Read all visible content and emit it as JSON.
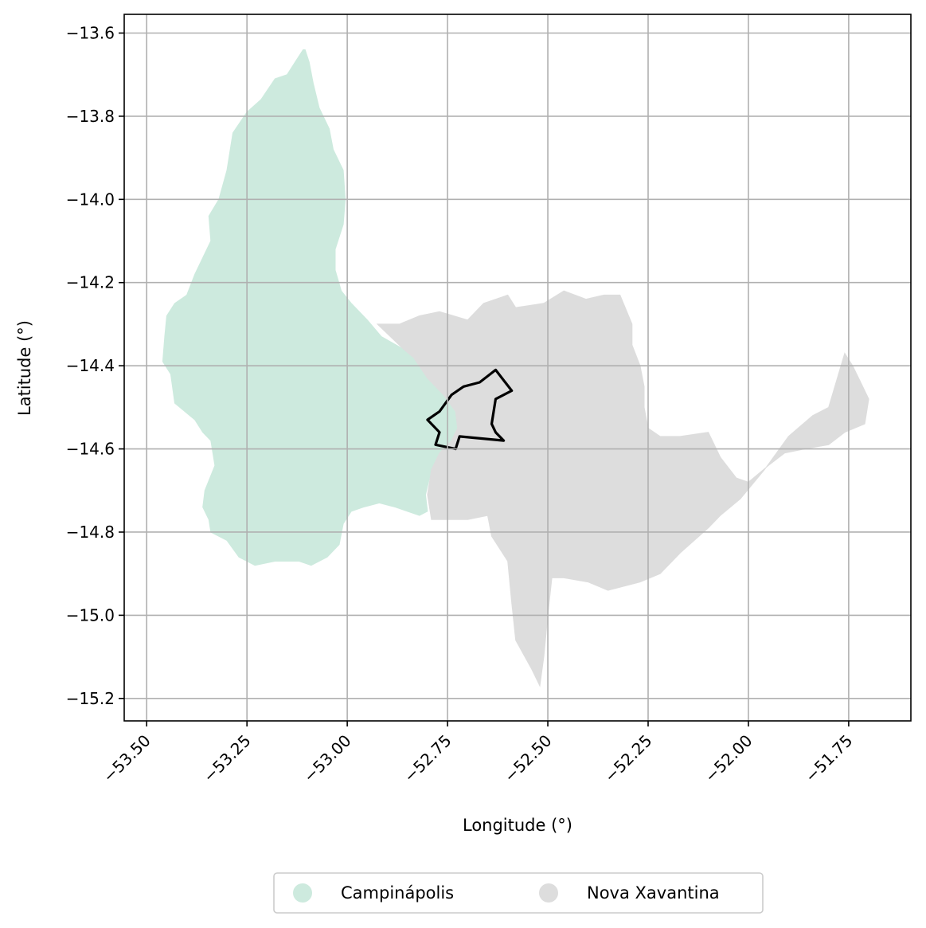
{
  "chart_data": {
    "type": "map",
    "xlabel": "Longitude (°)",
    "ylabel": "Latitude (°)",
    "xlim": [
      -53.556,
      -51.595
    ],
    "ylim": [
      -15.254,
      -13.555
    ],
    "grid": true,
    "x_ticks": [
      {
        "value": -53.5,
        "label": "−53.50"
      },
      {
        "value": -53.25,
        "label": "−53.25"
      },
      {
        "value": -53.0,
        "label": "−53.00"
      },
      {
        "value": -52.75,
        "label": "−52.75"
      },
      {
        "value": -52.5,
        "label": "−52.50"
      },
      {
        "value": -52.25,
        "label": "−52.25"
      },
      {
        "value": -52.0,
        "label": "−52.00"
      },
      {
        "value": -51.75,
        "label": "−51.75"
      }
    ],
    "y_ticks": [
      {
        "value": -13.6,
        "label": "−13.6"
      },
      {
        "value": -13.8,
        "label": "−13.8"
      },
      {
        "value": -14.0,
        "label": "−14.0"
      },
      {
        "value": -14.2,
        "label": "−14.2"
      },
      {
        "value": -14.4,
        "label": "−14.4"
      },
      {
        "value": -14.6,
        "label": "−14.6"
      },
      {
        "value": -14.8,
        "label": "−14.8"
      },
      {
        "value": -15.0,
        "label": "−15.0"
      },
      {
        "value": -15.2,
        "label": "−15.2"
      }
    ],
    "legend_placement": "bottom-center",
    "regions": [
      {
        "name": "Campinápolis",
        "color": "#cdeade",
        "polygon": [
          [
            -53.11,
            -13.64
          ],
          [
            -53.105,
            -13.64
          ],
          [
            -53.095,
            -13.67
          ],
          [
            -53.085,
            -13.72
          ],
          [
            -53.07,
            -13.78
          ],
          [
            -53.045,
            -13.83
          ],
          [
            -53.035,
            -13.88
          ],
          [
            -53.01,
            -13.93
          ],
          [
            -53.005,
            -14.0
          ],
          [
            -53.01,
            -14.06
          ],
          [
            -53.03,
            -14.12
          ],
          [
            -53.03,
            -14.17
          ],
          [
            -53.015,
            -14.22
          ],
          [
            -52.99,
            -14.25
          ],
          [
            -52.95,
            -14.29
          ],
          [
            -52.915,
            -14.33
          ],
          [
            -52.86,
            -14.36
          ],
          [
            -52.835,
            -14.38
          ],
          [
            -52.8,
            -14.43
          ],
          [
            -52.76,
            -14.47
          ],
          [
            -52.73,
            -14.51
          ],
          [
            -52.725,
            -14.55
          ],
          [
            -52.74,
            -14.58
          ],
          [
            -52.77,
            -14.61
          ],
          [
            -52.79,
            -14.65
          ],
          [
            -52.805,
            -14.71
          ],
          [
            -52.8,
            -14.75
          ],
          [
            -52.82,
            -14.76
          ],
          [
            -52.85,
            -14.75
          ],
          [
            -52.88,
            -14.74
          ],
          [
            -52.92,
            -14.73
          ],
          [
            -52.96,
            -14.74
          ],
          [
            -52.99,
            -14.75
          ],
          [
            -53.01,
            -14.78
          ],
          [
            -53.02,
            -14.83
          ],
          [
            -53.05,
            -14.86
          ],
          [
            -53.09,
            -14.88
          ],
          [
            -53.12,
            -14.87
          ],
          [
            -53.18,
            -14.87
          ],
          [
            -53.23,
            -14.88
          ],
          [
            -53.27,
            -14.86
          ],
          [
            -53.3,
            -14.82
          ],
          [
            -53.34,
            -14.8
          ],
          [
            -53.345,
            -14.77
          ],
          [
            -53.36,
            -14.74
          ],
          [
            -53.355,
            -14.7
          ],
          [
            -53.33,
            -14.64
          ],
          [
            -53.34,
            -14.58
          ],
          [
            -53.36,
            -14.56
          ],
          [
            -53.38,
            -14.53
          ],
          [
            -53.43,
            -14.49
          ],
          [
            -53.44,
            -14.42
          ],
          [
            -53.46,
            -14.39
          ],
          [
            -53.455,
            -14.33
          ],
          [
            -53.45,
            -14.28
          ],
          [
            -53.43,
            -14.25
          ],
          [
            -53.4,
            -14.23
          ],
          [
            -53.38,
            -14.18
          ],
          [
            -53.34,
            -14.1
          ],
          [
            -53.345,
            -14.04
          ],
          [
            -53.32,
            -14.0
          ],
          [
            -53.3,
            -13.93
          ],
          [
            -53.285,
            -13.84
          ],
          [
            -53.25,
            -13.79
          ],
          [
            -53.215,
            -13.76
          ],
          [
            -53.18,
            -13.71
          ],
          [
            -53.15,
            -13.7
          ],
          [
            -53.13,
            -13.67
          ]
        ]
      },
      {
        "name": "Nova Xavantina",
        "color": "#dddddd",
        "polygon": [
          [
            -52.925,
            -14.3
          ],
          [
            -52.87,
            -14.3
          ],
          [
            -52.82,
            -14.28
          ],
          [
            -52.77,
            -14.27
          ],
          [
            -52.7,
            -14.29
          ],
          [
            -52.66,
            -14.25
          ],
          [
            -52.6,
            -14.23
          ],
          [
            -52.58,
            -14.26
          ],
          [
            -52.51,
            -14.25
          ],
          [
            -52.46,
            -14.22
          ],
          [
            -52.405,
            -14.24
          ],
          [
            -52.36,
            -14.23
          ],
          [
            -52.32,
            -14.23
          ],
          [
            -52.29,
            -14.3
          ],
          [
            -52.29,
            -14.35
          ],
          [
            -52.27,
            -14.4
          ],
          [
            -52.26,
            -14.45
          ],
          [
            -52.26,
            -14.5
          ],
          [
            -52.25,
            -14.55
          ],
          [
            -52.22,
            -14.57
          ],
          [
            -52.17,
            -14.57
          ],
          [
            -52.1,
            -14.56
          ],
          [
            -52.07,
            -14.62
          ],
          [
            -52.03,
            -14.67
          ],
          [
            -52.0,
            -14.68
          ],
          [
            -51.95,
            -14.64
          ],
          [
            -51.91,
            -14.61
          ],
          [
            -51.86,
            -14.6
          ],
          [
            -51.8,
            -14.59
          ],
          [
            -51.76,
            -14.56
          ],
          [
            -51.71,
            -14.54
          ],
          [
            -51.7,
            -14.48
          ],
          [
            -51.72,
            -14.44
          ],
          [
            -51.74,
            -14.4
          ],
          [
            -51.76,
            -14.37
          ],
          [
            -51.8,
            -14.5
          ],
          [
            -51.84,
            -14.52
          ],
          [
            -51.9,
            -14.57
          ],
          [
            -51.96,
            -14.65
          ],
          [
            -52.02,
            -14.72
          ],
          [
            -52.07,
            -14.76
          ],
          [
            -52.1,
            -14.79
          ],
          [
            -52.17,
            -14.85
          ],
          [
            -52.22,
            -14.9
          ],
          [
            -52.27,
            -14.92
          ],
          [
            -52.35,
            -14.94
          ],
          [
            -52.4,
            -14.92
          ],
          [
            -52.46,
            -14.91
          ],
          [
            -52.49,
            -14.91
          ],
          [
            -52.5,
            -15.0
          ],
          [
            -52.51,
            -15.1
          ],
          [
            -52.52,
            -15.17
          ],
          [
            -52.54,
            -15.13
          ],
          [
            -52.58,
            -15.06
          ],
          [
            -52.59,
            -14.97
          ],
          [
            -52.6,
            -14.87
          ],
          [
            -52.64,
            -14.81
          ],
          [
            -52.65,
            -14.76
          ],
          [
            -52.7,
            -14.77
          ],
          [
            -52.75,
            -14.77
          ],
          [
            -52.79,
            -14.77
          ],
          [
            -52.8,
            -14.71
          ],
          [
            -52.79,
            -14.65
          ],
          [
            -52.77,
            -14.61
          ],
          [
            -52.74,
            -14.58
          ],
          [
            -52.725,
            -14.55
          ],
          [
            -52.73,
            -14.51
          ],
          [
            -52.76,
            -14.47
          ],
          [
            -52.8,
            -14.43
          ],
          [
            -52.835,
            -14.38
          ],
          [
            -52.86,
            -14.36
          ]
        ]
      }
    ],
    "outline": {
      "color": "#000000",
      "polygon": [
        [
          -52.63,
          -14.41
        ],
        [
          -52.59,
          -14.46
        ],
        [
          -52.63,
          -14.48
        ],
        [
          -52.64,
          -14.54
        ],
        [
          -52.63,
          -14.56
        ],
        [
          -52.61,
          -14.58
        ],
        [
          -52.72,
          -14.57
        ],
        [
          -52.73,
          -14.6
        ],
        [
          -52.78,
          -14.59
        ],
        [
          -52.77,
          -14.56
        ],
        [
          -52.8,
          -14.53
        ],
        [
          -52.77,
          -14.51
        ],
        [
          -52.74,
          -14.47
        ],
        [
          -52.71,
          -14.45
        ],
        [
          -52.67,
          -14.44
        ]
      ]
    }
  },
  "legend": {
    "items": [
      {
        "label": "Campinápolis",
        "color": "#cdeade"
      },
      {
        "label": "Nova Xavantina",
        "color": "#dddddd"
      }
    ]
  }
}
